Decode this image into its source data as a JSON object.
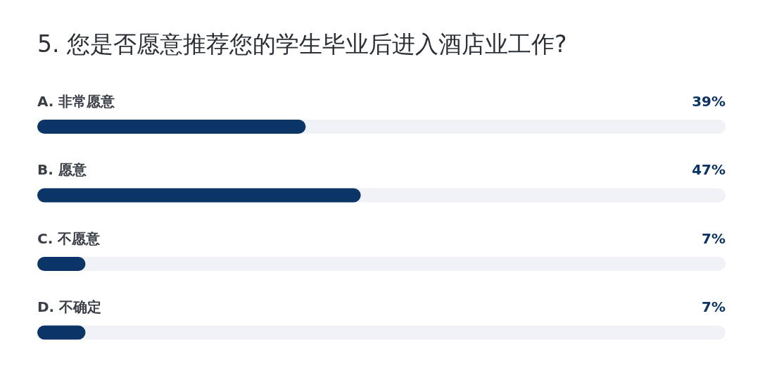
{
  "chart_data": {
    "type": "bar",
    "orientation": "horizontal",
    "title": "5. 您是否愿意推荐您的学生毕业后进入酒店业工作?",
    "categories": [
      "A. 非常愿意",
      "B. 愿意",
      "C. 不愿意",
      "D. 不确定"
    ],
    "values": [
      39,
      47,
      7,
      7
    ],
    "value_labels": [
      "39%",
      "47%",
      "7%",
      "7%"
    ],
    "color": "#0b3566",
    "xlim": [
      0,
      100
    ]
  }
}
